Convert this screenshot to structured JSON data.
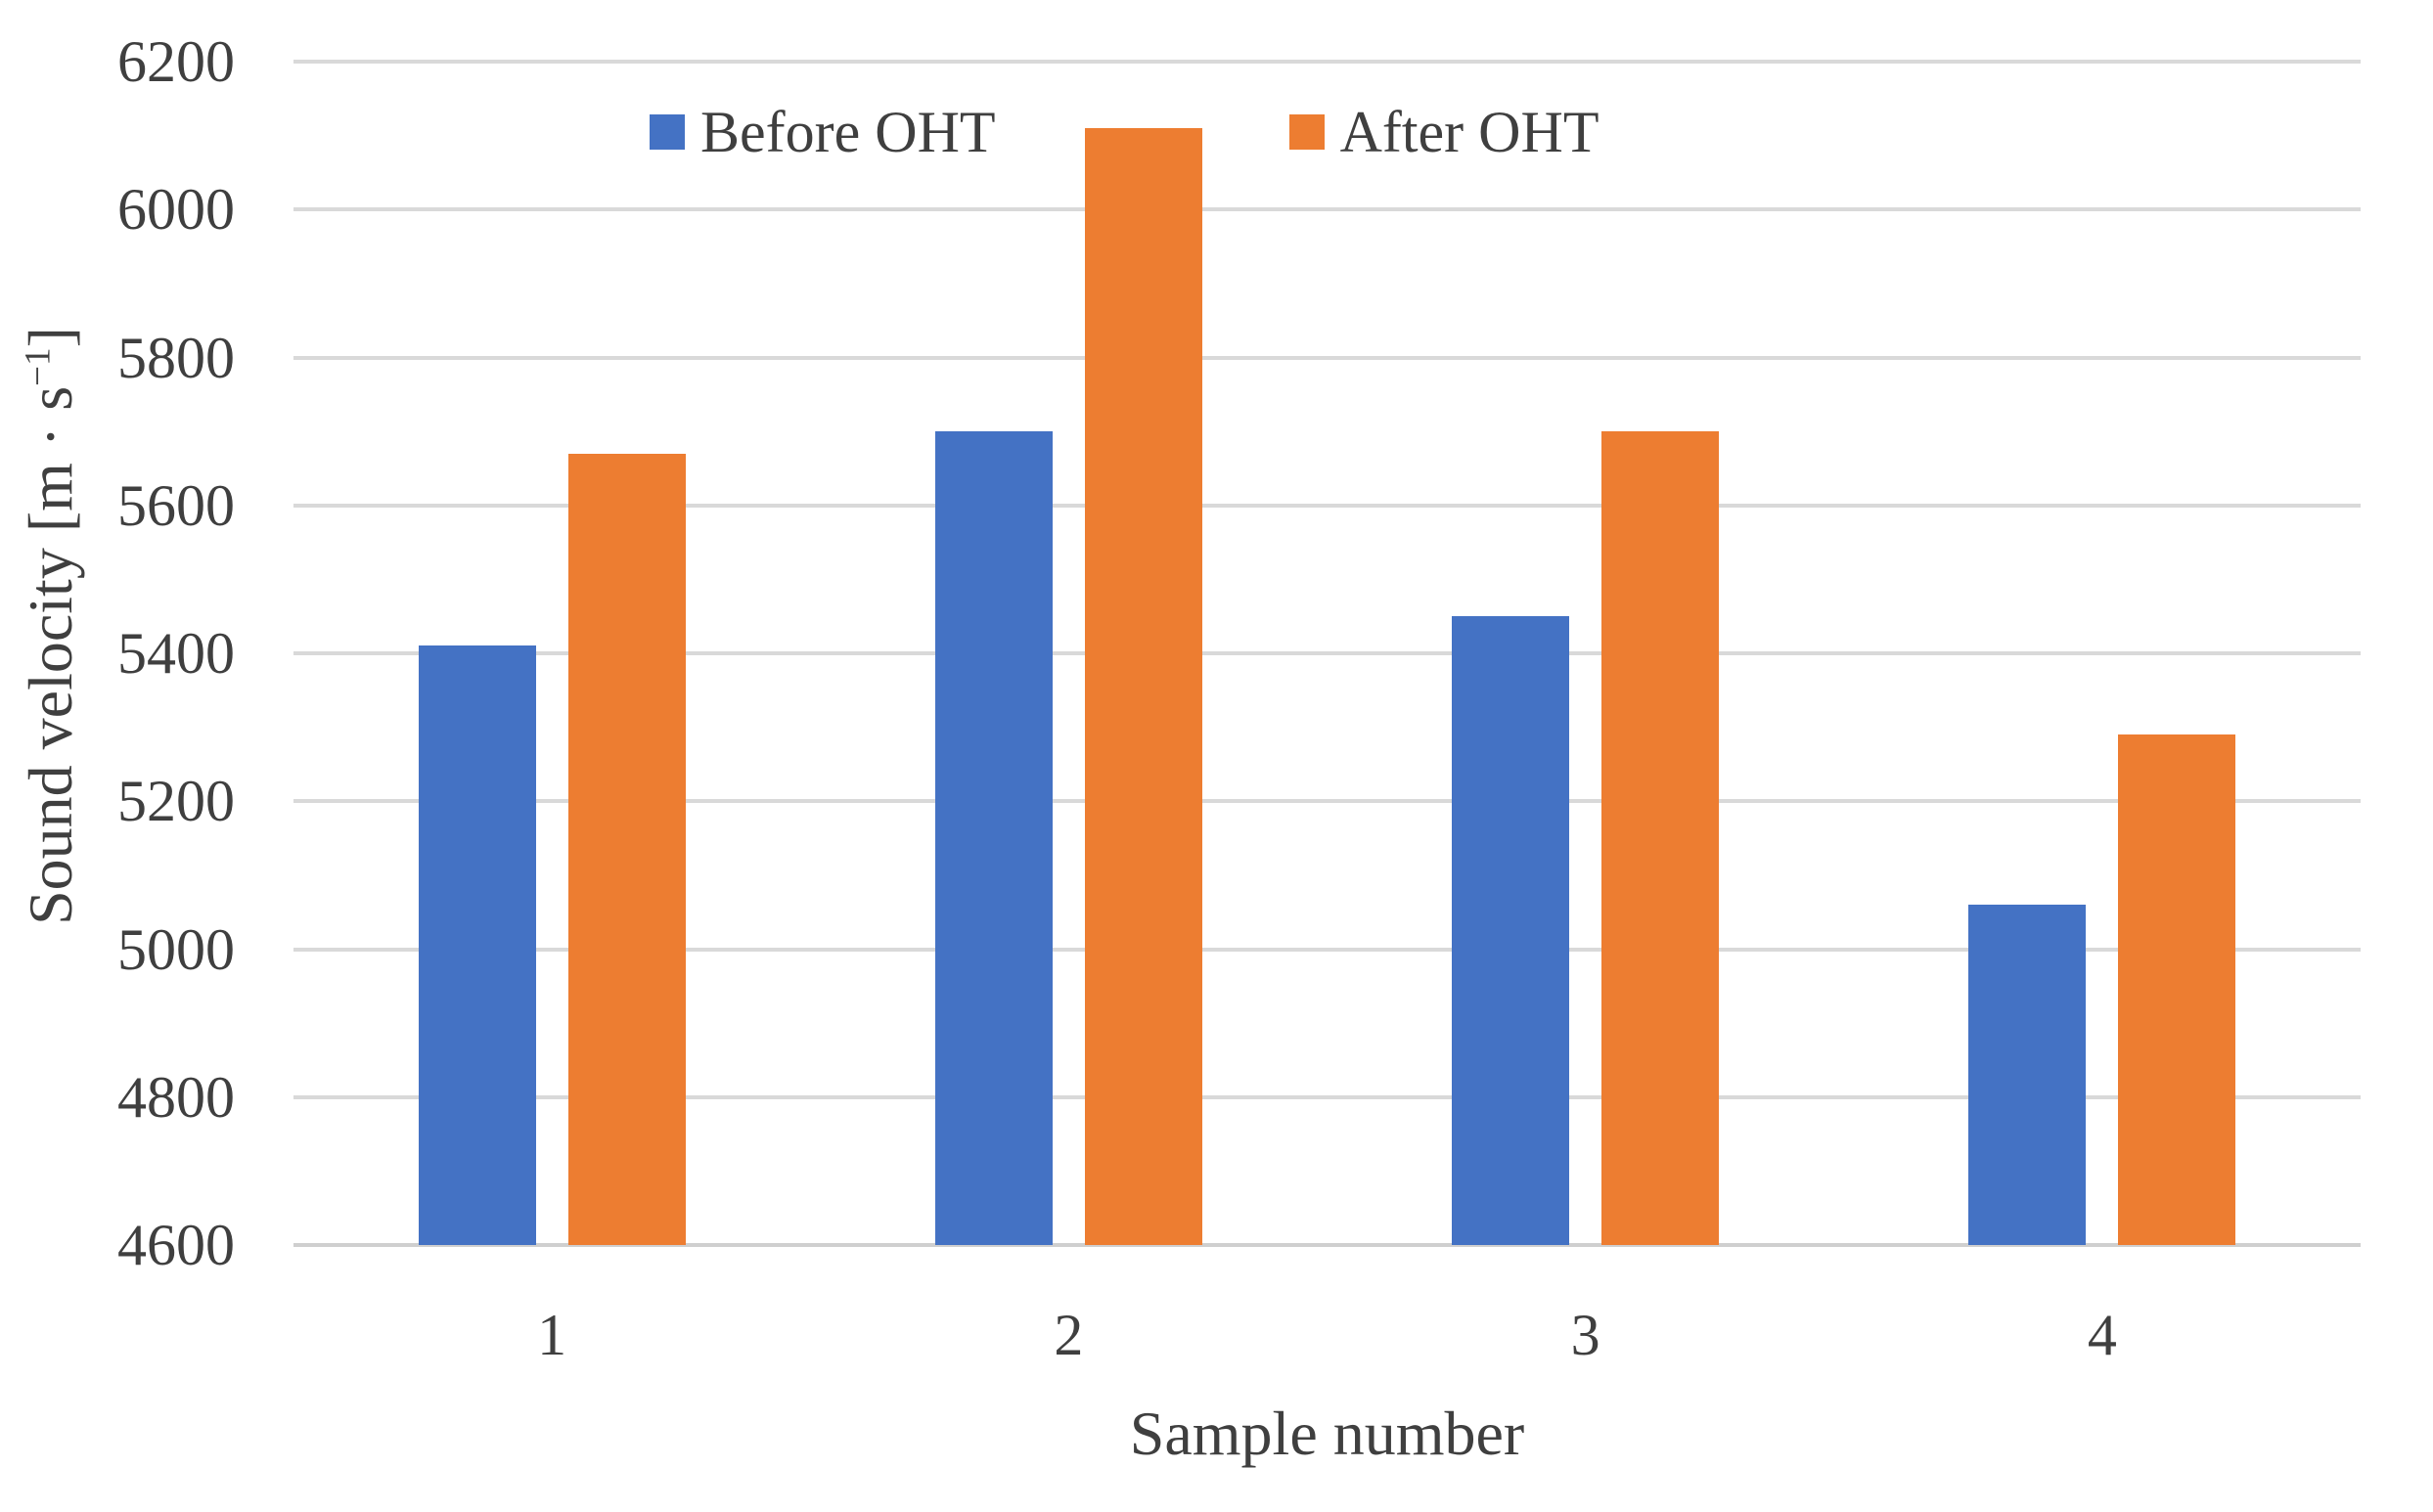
{
  "figure": {
    "background": "#ffffff",
    "text_color": "#3f3f3f"
  },
  "chart_data": {
    "type": "bar",
    "title": "",
    "categories": [
      "1",
      "2",
      "3",
      "4"
    ],
    "series": [
      {
        "name": "Before OHT",
        "color": "#4472C4",
        "values": [
          5410,
          5700,
          5450,
          5060
        ]
      },
      {
        "name": "After OHT",
        "color": "#ED7D31",
        "values": [
          5670,
          6110,
          5700,
          5290
        ]
      }
    ],
    "xlabel": "Sample number",
    "ylabel": "Sound velocity [m · s⁻¹]",
    "ylim": [
      4600,
      6200
    ],
    "yticks": [
      4600,
      4800,
      5000,
      5200,
      5400,
      5600,
      5800,
      6000,
      6200
    ],
    "grid": true,
    "gridline_color": "#d9d9d9",
    "axisline_color": "#cfcfcf",
    "legend_position": "top-inside",
    "legend": [
      "Before OHT",
      "After OHT"
    ]
  },
  "ylabel_parts": {
    "main": "Sound velocity [m · s",
    "sup": "−1",
    "end": "]"
  }
}
